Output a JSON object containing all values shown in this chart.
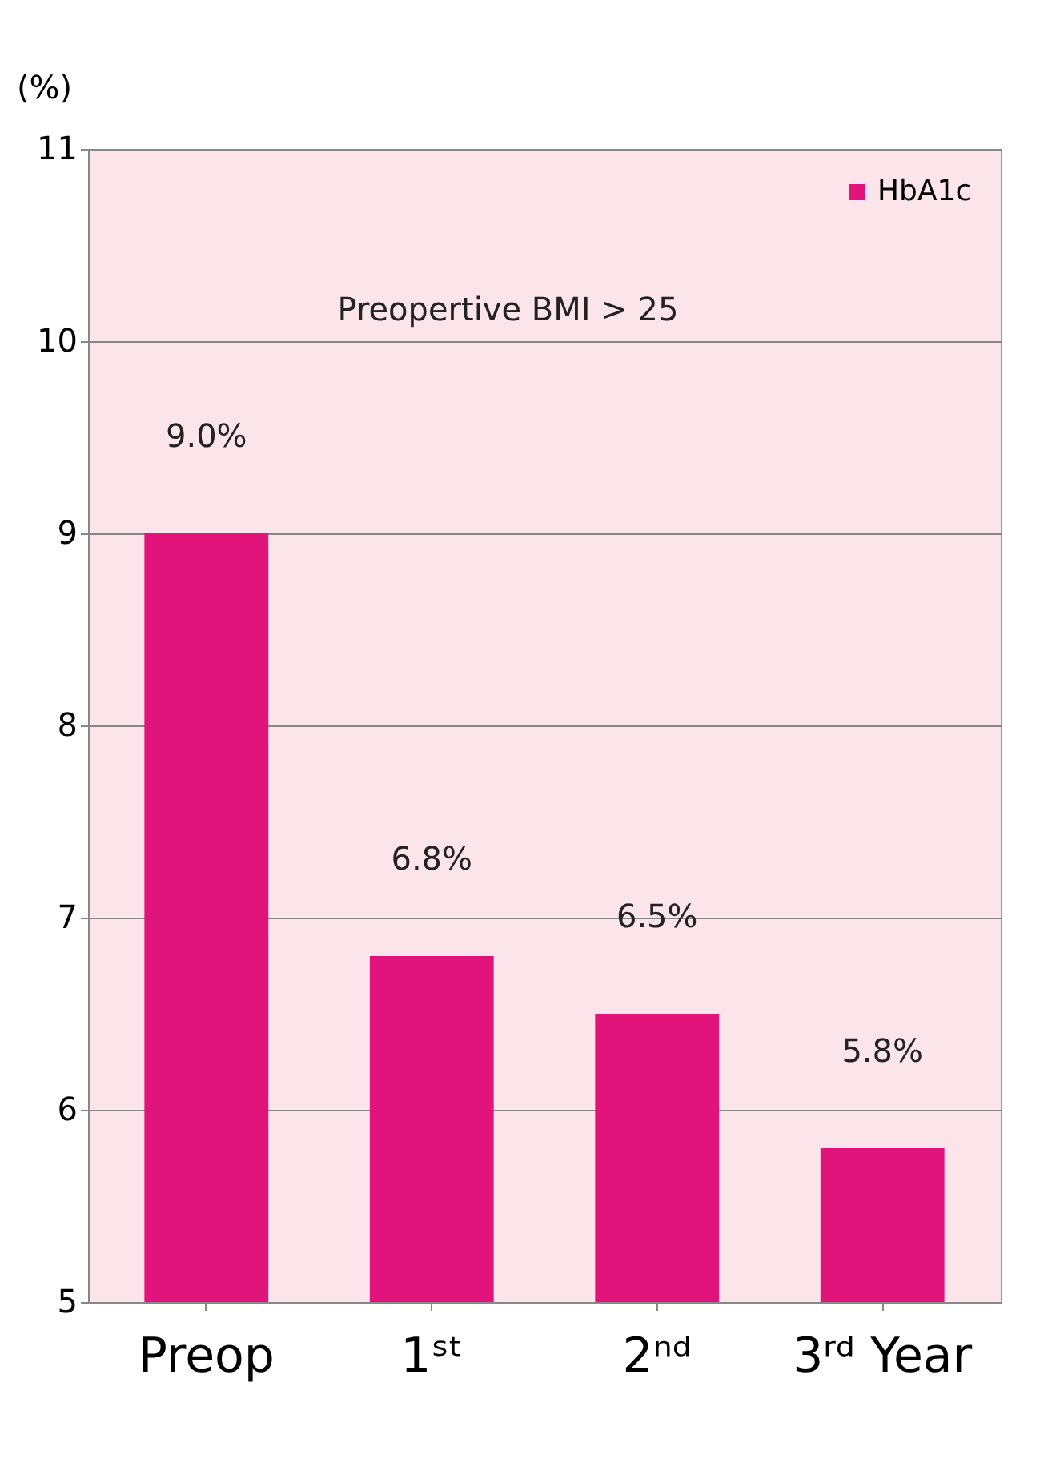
{
  "chart_data": {
    "type": "bar",
    "ylabel": "(%)",
    "categories": [
      "Preop",
      "1ˢᵗ",
      "2ⁿᵈ",
      "3ʳᵈ Year"
    ],
    "series": [
      {
        "name": "HbA1c",
        "color": "#e0147a",
        "values": [
          9.0,
          6.8,
          6.5,
          5.8
        ],
        "value_labels": [
          "9.0%",
          "6.8%",
          "6.5%",
          "5.8%"
        ]
      }
    ],
    "annotations": [
      "Preopertive BMI > 25"
    ],
    "ylim": [
      5,
      11
    ],
    "yticks": [
      5,
      6,
      7,
      8,
      9,
      10,
      11
    ],
    "grid": "y",
    "legend": "top right"
  }
}
